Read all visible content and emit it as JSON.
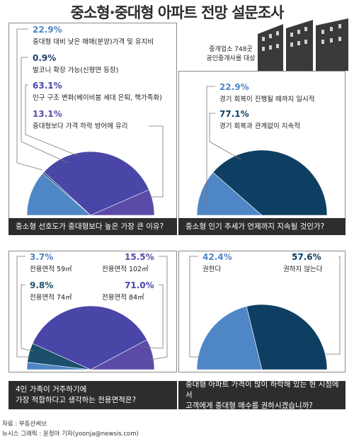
{
  "title": "중소형·중대형 아파트 전망 설문조사",
  "survey_note": [
    "중개업소 748곳",
    "공인중개사를 대상"
  ],
  "colors": {
    "light_blue": "#4f86c6",
    "dark_blue": "#0e3f63",
    "purple": "#5b4ba6",
    "teal": "#1b4f6c",
    "dark_panel": "#2d2d2d"
  },
  "chart_data": [
    {
      "type": "pie",
      "question": "중소형 선호도가 중대형보다 높은 가장 큰 이유?",
      "slices": [
        {
          "pct_label": "22.9%",
          "label": "중대형 대비 낮은 매매(분양)가격 및 유지비",
          "value": 22.9,
          "color": "#4f86c6"
        },
        {
          "pct_label": "0.9%",
          "label": "발코니 확장 가능(신평면 등장)",
          "value": 0.9,
          "color": "#1f3f6e"
        },
        {
          "pct_label": "63.1%",
          "label": "인구 구조 변화(베이비붐 세대 은퇴, 핵가족화)",
          "value": 63.1,
          "color": "#4a46a8"
        },
        {
          "pct_label": "13.1%",
          "label": "중대형보다 가격 하락 방어에 유리",
          "value": 13.1,
          "color": "#5b4ba6"
        }
      ]
    },
    {
      "type": "pie",
      "question": "중소형 인기 추세가 언제까지 지속될 것인가?",
      "slices": [
        {
          "pct_label": "22.9%",
          "label": "경기 회복이 진행될 때까지 일시적",
          "value": 22.9,
          "color": "#4f86c6"
        },
        {
          "pct_label": "77.1%",
          "label": "경기 회복과 관계없이 지속적",
          "value": 77.1,
          "color": "#0e3f63"
        }
      ]
    },
    {
      "type": "pie",
      "question_lines": [
        "4인 가족이 거주하기에",
        "가장 적합하다고 생각하는 전용면적은?"
      ],
      "slices": [
        {
          "pct_label": "3.7%",
          "label": "전용면적 59㎡",
          "value": 3.7,
          "color": "#4f86c6"
        },
        {
          "pct_label": "9.8%",
          "label": "전용면적 74㎡",
          "value": 9.8,
          "color": "#1b4f6c"
        },
        {
          "pct_label": "71.0%",
          "label": "전용면적 84㎡",
          "value": 71.0,
          "color": "#4a46a8"
        },
        {
          "pct_label": "15.5%",
          "label": "전용면적 102㎡",
          "value": 15.5,
          "color": "#5b4ba6"
        }
      ]
    },
    {
      "type": "pie",
      "question_lines": [
        "중대형 아파트 가격이 많이 하락해 있는 현 시점에서",
        "고객에게 중대형 매수를 권하시겠습니까?"
      ],
      "slices": [
        {
          "pct_label": "42.4%",
          "label": "권한다",
          "value": 42.4,
          "color": "#4f86c6"
        },
        {
          "pct_label": "57.6%",
          "label": "권하지 않는다",
          "value": 57.6,
          "color": "#0e3f63"
        }
      ]
    }
  ],
  "footer": {
    "source": "자료 : 부동산써브",
    "credit": "뉴시스 그래픽 : 윤정아 기자(yoonja@newsis.com)"
  }
}
